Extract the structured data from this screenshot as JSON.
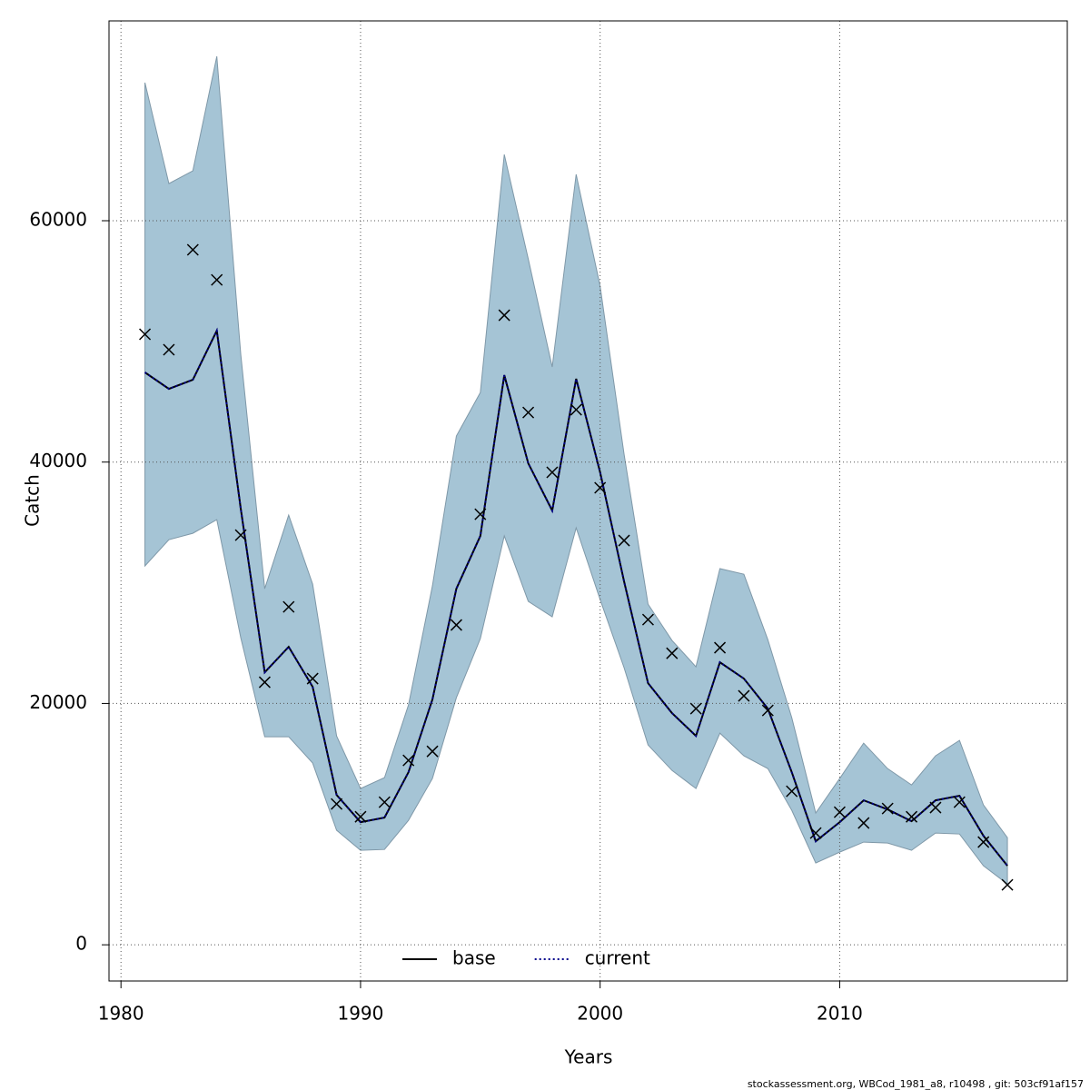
{
  "chart_data": {
    "type": "line",
    "x_label": "Years",
    "y_label": "Catch",
    "footer": "stockassessment.org, WBCod_1981_a8, r10498 , git: 503cf91af157",
    "x": [
      1981,
      1982,
      1983,
      1984,
      1985,
      1986,
      1987,
      1988,
      1989,
      1990,
      1991,
      1992,
      1993,
      1994,
      1995,
      1996,
      1997,
      1998,
      1999,
      2000,
      2001,
      2002,
      2003,
      2004,
      2005,
      2006,
      2007,
      2008,
      2009,
      2010,
      2011,
      2012,
      2013,
      2014,
      2015,
      2016,
      2017
    ],
    "series": [
      {
        "name": "base",
        "color": "#000000",
        "dash": "none",
        "values": [
          47430,
          46070,
          46820,
          50890,
          36130,
          22580,
          24690,
          21380,
          12420,
          10160,
          10540,
          14300,
          20330,
          29510,
          33880,
          47200,
          39900,
          35980,
          46900,
          39150,
          30110,
          21680,
          19200,
          17310,
          23410,
          22060,
          19570,
          14300,
          8580,
          10160,
          11970,
          11220,
          10240,
          11970,
          12350,
          9030,
          6550
        ]
      },
      {
        "name": "current",
        "color": "#00008b",
        "dash": "2 3",
        "values": [
          47430,
          46070,
          46820,
          50890,
          36130,
          22580,
          24690,
          21380,
          12420,
          10160,
          10540,
          14300,
          20330,
          29510,
          33880,
          47200,
          39900,
          35980,
          46900,
          39150,
          30110,
          21680,
          19200,
          17310,
          23410,
          22060,
          19570,
          14300,
          8580,
          10160,
          11970,
          11220,
          10240,
          11970,
          12350,
          9030,
          6550
        ]
      }
    ],
    "band": {
      "color": "#a5c4d5",
      "upper": [
        71440,
        63080,
        64140,
        73620,
        48930,
        29510,
        35610,
        29890,
        17310,
        12950,
        13850,
        19870,
        29740,
        42160,
        45770,
        65490,
        56840,
        47880,
        63840,
        54580,
        40650,
        28230,
        25220,
        23040,
        31170,
        30710,
        25290,
        18820,
        10920,
        13780,
        16710,
        14600,
        13250,
        15660,
        16940,
        11590,
        8880
      ],
      "lower": [
        31390,
        33570,
        34100,
        35230,
        25440,
        17240,
        17240,
        15060,
        9490,
        7830,
        7900,
        10310,
        13780,
        20480,
        25370,
        33880,
        28460,
        27180,
        34550,
        28610,
        22960,
        16560,
        14450,
        12950,
        17540,
        15660,
        14600,
        11140,
        6780,
        7680,
        8510,
        8430,
        7830,
        9260,
        9180,
        6550,
        5040
      ]
    },
    "points": {
      "color": "#000000",
      "values": [
        50590,
        49310,
        57590,
        55100,
        33950,
        21760,
        28000,
        22060,
        11670,
        10610,
        11820,
        15280,
        16030,
        26500,
        35680,
        52170,
        44110,
        39150,
        44340,
        37870,
        33500,
        26950,
        24160,
        19570,
        24620,
        20630,
        19420,
        12720,
        9260,
        10990,
        10090,
        11290,
        10610,
        11370,
        11820,
        8510,
        4970
      ]
    },
    "xlim": [
      1979.5,
      2019.5
    ],
    "ylim": [
      -3000,
      76560
    ],
    "xticks": [
      1980,
      1990,
      2000,
      2010
    ],
    "yticks": [
      0,
      20000,
      40000,
      60000
    ],
    "grid": true,
    "legend": "bottom"
  }
}
